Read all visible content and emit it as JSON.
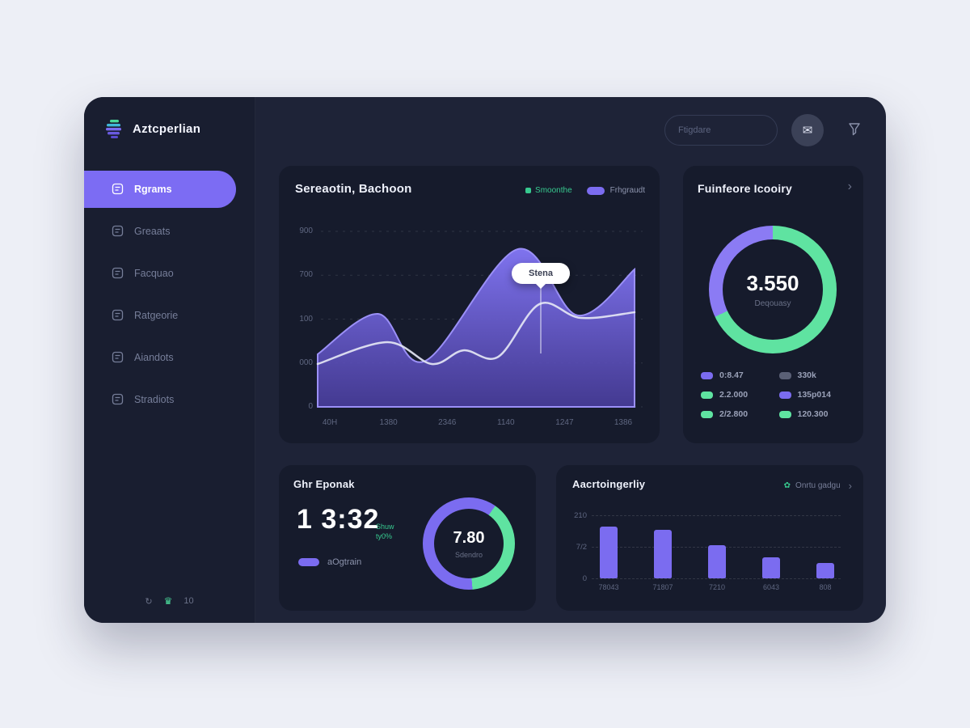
{
  "app": {
    "name": "Aztcperlian"
  },
  "header": {
    "search_placeholder": "Ftigdare"
  },
  "sidebar": {
    "items": [
      {
        "label": "Rgrams",
        "active": true
      },
      {
        "label": "Greaats",
        "active": false
      },
      {
        "label": "Facquao",
        "active": false
      },
      {
        "label": "Ratgeorie",
        "active": false
      },
      {
        "label": "Aiandots",
        "active": false
      },
      {
        "label": "Stradiots",
        "active": false
      }
    ],
    "footer": {
      "count": "10"
    }
  },
  "cards": {
    "trend": {
      "title": "Sereaotin, Bachoon",
      "legend_a": "Smoonthe",
      "legend_b": "Frhgraudt",
      "tooltip": "Stena"
    },
    "inventory": {
      "title": "Fuinfeore Icooiry"
    },
    "time": {
      "title": "Ghr Eponak",
      "value": "1 3:32",
      "delta_top": "Shuw",
      "delta_bottom": "ty0%",
      "series_label": "aOgtrain"
    },
    "activity": {
      "title": "Aacrtoingerliy",
      "legend_label": "Onrtu gadgu"
    }
  },
  "colors": {
    "accent_purple": "#7b6cf0",
    "accent_green": "#5fe3a1",
    "muted_gray": "#5a6076"
  },
  "chart_data": [
    {
      "type": "area",
      "title": "Sereaotin, Bachoon",
      "x_ticks": [
        "40H",
        "1380",
        "2346",
        "1140",
        "1247",
        "1386"
      ],
      "y_ticks": [
        "900",
        "700",
        "100",
        "000",
        "0"
      ],
      "ylim": [
        0,
        900
      ],
      "grid": "dashed-horizontal",
      "legend_position": "top-right",
      "series": [
        {
          "name": "Frhgraudt",
          "color": "#7b6cf0",
          "style": "filled-area",
          "x": [
            0,
            0.19,
            0.34,
            0.63,
            0.82,
            1
          ],
          "values": [
            270,
            477,
            236,
            808,
            469,
            705
          ]
        },
        {
          "name": "Smoonthe",
          "color": "#e4e6f4",
          "style": "line",
          "x": [
            0,
            0.22,
            0.36,
            0.46,
            0.57,
            0.7,
            0.83,
            1
          ],
          "values": [
            220,
            332,
            220,
            290,
            257,
            527,
            456,
            485
          ]
        }
      ],
      "tooltip": {
        "label": "Stena",
        "x": 0.7,
        "value": 527
      }
    },
    {
      "type": "donut",
      "title": "Fuinfeore Icooiry",
      "center_value": "3.550",
      "center_label": "Deqouasy",
      "start_deg": 0,
      "slices": [
        {
          "color": "#5fe3a1",
          "pct": 68
        },
        {
          "color": "#8b7bf4",
          "pct": 32
        }
      ],
      "legend": [
        {
          "color": "#7b6cf0",
          "label": "0:8.47"
        },
        {
          "color": "#5a6076",
          "label": "330k"
        },
        {
          "color": "#5fe3a1",
          "label": "2.2.000"
        },
        {
          "color": "#7b6cf0",
          "label": "135p014"
        },
        {
          "color": "#5fe3a1",
          "label": "2/2.800"
        },
        {
          "color": "#5fe3a1",
          "label": "120.300"
        }
      ]
    },
    {
      "type": "donut",
      "title": "Ghr Eponak",
      "center_value": "7.80",
      "center_label": "Sdendro",
      "start_deg": 35,
      "slices": [
        {
          "color": "#5fe3a1",
          "pct": 39
        },
        {
          "color": "#7b6cf0",
          "pct": 61
        }
      ]
    },
    {
      "type": "bar",
      "title": "Aacrtoingerliy",
      "categories": [
        "78043",
        "71807",
        "7210",
        "6043",
        "808"
      ],
      "values": [
        172,
        162,
        110,
        70,
        51
      ],
      "y_ticks": [
        "210",
        "7/2",
        "0"
      ],
      "ylim": [
        0,
        210
      ],
      "bar_color": "#7b6cf0"
    }
  ]
}
